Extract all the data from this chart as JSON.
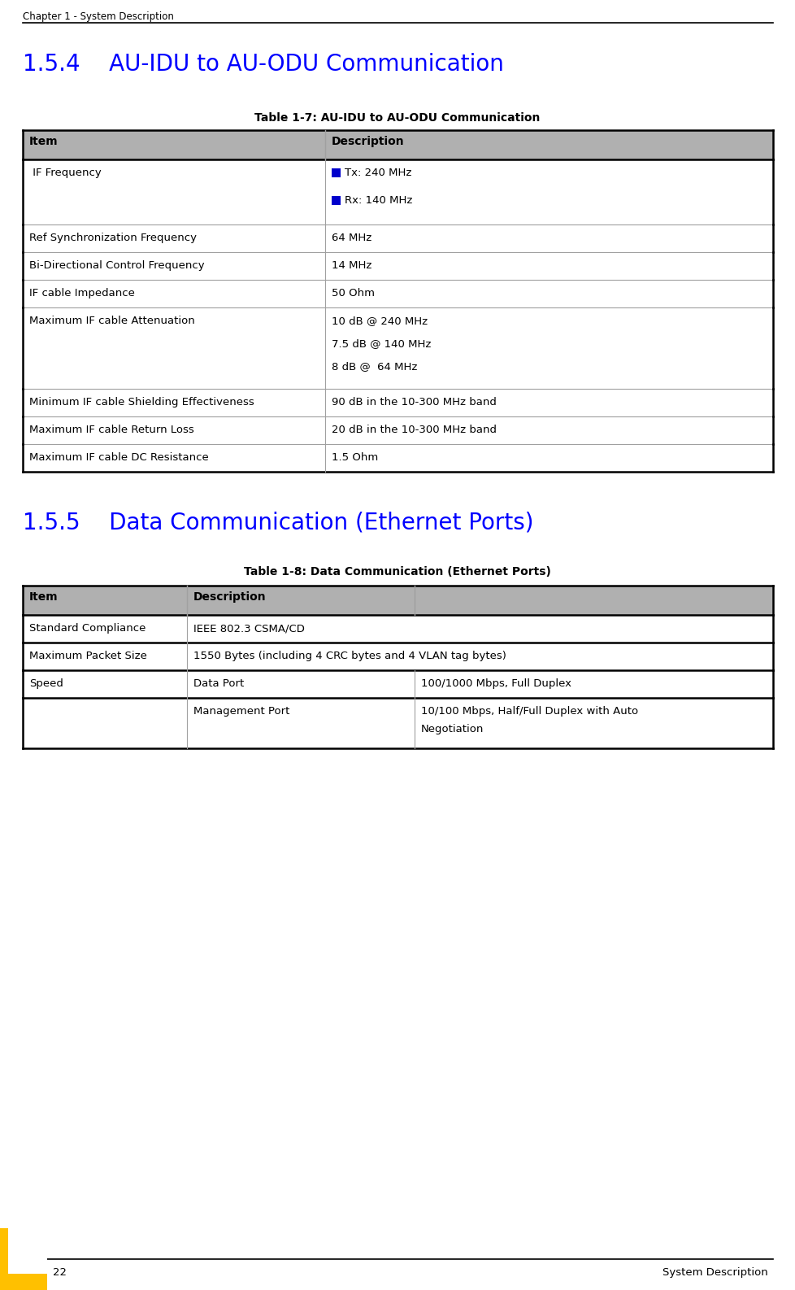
{
  "page_header": "Chapter 1 - System Description",
  "section1_title": "1.5.4    AU-IDU to AU-ODU Communication",
  "table1_title": "Table 1-7: AU-IDU to AU-ODU Communication",
  "table1_header": [
    "Item",
    "Description"
  ],
  "table1_rows": [
    {
      "item": " IF Frequency",
      "desc_lines": [
        "Tx: 240 MHz",
        "Rx: 140 MHz"
      ],
      "has_bullet": true
    },
    {
      "item": "Ref Synchronization Frequency",
      "desc_lines": [
        "64 MHz"
      ],
      "has_bullet": false
    },
    {
      "item": "Bi-Directional Control Frequency",
      "desc_lines": [
        "14 MHz"
      ],
      "has_bullet": false
    },
    {
      "item": "IF cable Impedance",
      "desc_lines": [
        "50 Ohm"
      ],
      "has_bullet": false
    },
    {
      "item": "Maximum IF cable Attenuation",
      "desc_lines": [
        "10 dB @ 240 MHz",
        "7.5 dB @ 140 MHz",
        "8 dB @  64 MHz"
      ],
      "has_bullet": false
    },
    {
      "item": "Minimum IF cable Shielding Effectiveness",
      "desc_lines": [
        "90 dB in the 10-300 MHz band"
      ],
      "has_bullet": false
    },
    {
      "item": "Maximum IF cable Return Loss",
      "desc_lines": [
        "20 dB in the 10-300 MHz band"
      ],
      "has_bullet": false
    },
    {
      "item": "Maximum IF cable DC Resistance",
      "desc_lines": [
        "1.5 Ohm"
      ],
      "has_bullet": false
    }
  ],
  "section2_title": "1.5.5    Data Communication (Ethernet Ports)",
  "table2_title": "Table 1-8: Data Communication (Ethernet Ports)",
  "table2_header": [
    "Item",
    "Description",
    ""
  ],
  "table2_rows": [
    {
      "col1": "Standard Compliance",
      "col2": "IEEE 802.3 CSMA/CD",
      "col3": "",
      "span23": true
    },
    {
      "col1": "Maximum Packet Size",
      "col2": "1550 Bytes (including 4 CRC bytes and 4 VLAN tag bytes)",
      "col3": "",
      "span23": true
    },
    {
      "col1": "Speed",
      "col2": "Data Port",
      "col3": "100/1000 Mbps, Full Duplex",
      "span23": false
    },
    {
      "col1": "",
      "col2": "Management Port",
      "col3": "10/100 Mbps, Half/Full Duplex with Auto\nNegotiation",
      "span23": false
    }
  ],
  "footer_page": "22",
  "footer_right": "System Description",
  "header_color": "#b0b0b0",
  "table_border_color": "#000000",
  "section_title_color": "#0000FF",
  "bullet_color": "#0000CC",
  "bg_color": "#ffffff",
  "footer_bar_color": "#FFC000",
  "inner_line_color": "#a0a0a0",
  "header_text_color": "#000000"
}
